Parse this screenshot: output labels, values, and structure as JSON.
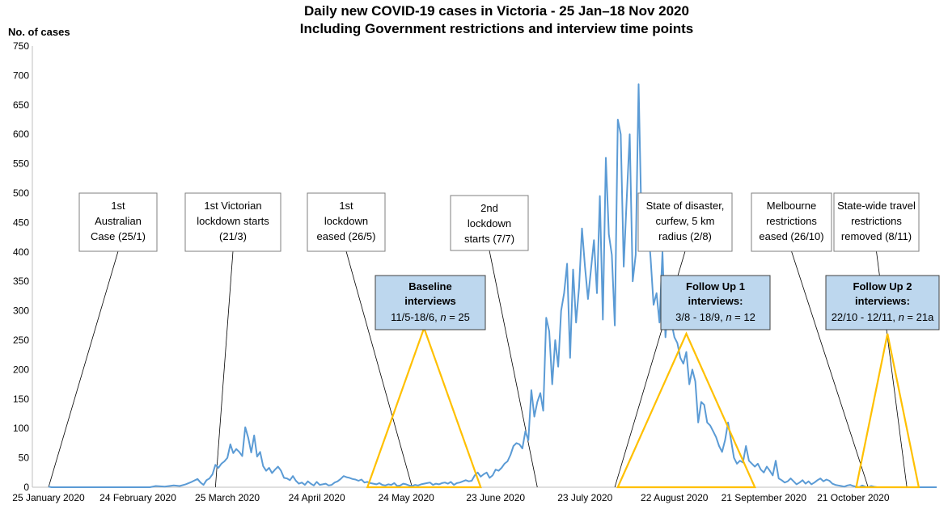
{
  "chart_data": {
    "type": "line",
    "title": "Daily new COVID-19 cases in Victoria - 25 Jan–18 Nov 2020",
    "subtitle": "Including Government restrictions and interview time points",
    "ylabel": "No. of cases",
    "xlabel": "",
    "xlim": [
      "2020-01-25",
      "2020-11-18"
    ],
    "ylim": [
      0,
      750
    ],
    "yticks": [
      0,
      50,
      100,
      150,
      200,
      250,
      300,
      350,
      400,
      450,
      500,
      550,
      600,
      650,
      700,
      750
    ],
    "xticks": [
      {
        "date": "2020-01-25",
        "label": "25 January 2020"
      },
      {
        "date": "2020-02-24",
        "label": "24 February 2020"
      },
      {
        "date": "2020-03-25",
        "label": "25 March 2020"
      },
      {
        "date": "2020-04-24",
        "label": "24 April 2020"
      },
      {
        "date": "2020-05-24",
        "label": "24 May 2020"
      },
      {
        "date": "2020-06-23",
        "label": "23 June 2020"
      },
      {
        "date": "2020-07-23",
        "label": "23 July 2020"
      },
      {
        "date": "2020-08-22",
        "label": "22 August 2020"
      },
      {
        "date": "2020-09-21",
        "label": "21 September 2020"
      },
      {
        "date": "2020-10-21",
        "label": "21 October 2020"
      }
    ],
    "grid": false,
    "line_color": "#5b9bd5",
    "series": [
      {
        "name": "",
        "points": [
          [
            "2020-01-25",
            1
          ],
          [
            "2020-01-26",
            0
          ],
          [
            "2020-01-27",
            0
          ],
          [
            "2020-02-01",
            0
          ],
          [
            "2020-02-15",
            0
          ],
          [
            "2020-02-25",
            0
          ],
          [
            "2020-02-28",
            0
          ],
          [
            "2020-03-01",
            2
          ],
          [
            "2020-03-04",
            1
          ],
          [
            "2020-03-07",
            3
          ],
          [
            "2020-03-09",
            2
          ],
          [
            "2020-03-11",
            5
          ],
          [
            "2020-03-13",
            9
          ],
          [
            "2020-03-15",
            14
          ],
          [
            "2020-03-16",
            8
          ],
          [
            "2020-03-17",
            4
          ],
          [
            "2020-03-18",
            12
          ],
          [
            "2020-03-19",
            15
          ],
          [
            "2020-03-20",
            22
          ],
          [
            "2020-03-21",
            38
          ],
          [
            "2020-03-22",
            33
          ],
          [
            "2020-03-23",
            40
          ],
          [
            "2020-03-24",
            44
          ],
          [
            "2020-03-25",
            50
          ],
          [
            "2020-03-26",
            73
          ],
          [
            "2020-03-27",
            58
          ],
          [
            "2020-03-28",
            65
          ],
          [
            "2020-03-29",
            60
          ],
          [
            "2020-03-30",
            53
          ],
          [
            "2020-03-31",
            102
          ],
          [
            "2020-04-01",
            84
          ],
          [
            "2020-04-02",
            59
          ],
          [
            "2020-04-03",
            88
          ],
          [
            "2020-04-04",
            52
          ],
          [
            "2020-04-05",
            60
          ],
          [
            "2020-04-06",
            36
          ],
          [
            "2020-04-07",
            28
          ],
          [
            "2020-04-08",
            33
          ],
          [
            "2020-04-09",
            24
          ],
          [
            "2020-04-10",
            30
          ],
          [
            "2020-04-11",
            35
          ],
          [
            "2020-04-12",
            28
          ],
          [
            "2020-04-13",
            16
          ],
          [
            "2020-04-14",
            15
          ],
          [
            "2020-04-15",
            12
          ],
          [
            "2020-04-16",
            19
          ],
          [
            "2020-04-17",
            11
          ],
          [
            "2020-04-18",
            6
          ],
          [
            "2020-04-19",
            8
          ],
          [
            "2020-04-20",
            4
          ],
          [
            "2020-04-21",
            10
          ],
          [
            "2020-04-22",
            6
          ],
          [
            "2020-04-23",
            3
          ],
          [
            "2020-04-24",
            9
          ],
          [
            "2020-04-25",
            4
          ],
          [
            "2020-04-26",
            5
          ],
          [
            "2020-04-27",
            6
          ],
          [
            "2020-04-28",
            3
          ],
          [
            "2020-04-29",
            4
          ],
          [
            "2020-04-30",
            8
          ],
          [
            "2020-05-01",
            10
          ],
          [
            "2020-05-02",
            14
          ],
          [
            "2020-05-03",
            19
          ],
          [
            "2020-05-04",
            17
          ],
          [
            "2020-05-05",
            16
          ],
          [
            "2020-05-06",
            14
          ],
          [
            "2020-05-07",
            13
          ],
          [
            "2020-05-08",
            11
          ],
          [
            "2020-05-09",
            13
          ],
          [
            "2020-05-10",
            8
          ],
          [
            "2020-05-11",
            9
          ],
          [
            "2020-05-12",
            7
          ],
          [
            "2020-05-13",
            6
          ],
          [
            "2020-05-14",
            5
          ],
          [
            "2020-05-15",
            7
          ],
          [
            "2020-05-16",
            4
          ],
          [
            "2020-05-17",
            3
          ],
          [
            "2020-05-18",
            5
          ],
          [
            "2020-05-19",
            4
          ],
          [
            "2020-05-20",
            7
          ],
          [
            "2020-05-21",
            2
          ],
          [
            "2020-05-22",
            3
          ],
          [
            "2020-05-23",
            6
          ],
          [
            "2020-05-24",
            5
          ],
          [
            "2020-05-25",
            3
          ],
          [
            "2020-05-26",
            2
          ],
          [
            "2020-05-27",
            4
          ],
          [
            "2020-05-28",
            3
          ],
          [
            "2020-05-29",
            5
          ],
          [
            "2020-05-30",
            6
          ],
          [
            "2020-05-31",
            7
          ],
          [
            "2020-06-01",
            8
          ],
          [
            "2020-06-02",
            4
          ],
          [
            "2020-06-03",
            6
          ],
          [
            "2020-06-04",
            5
          ],
          [
            "2020-06-05",
            7
          ],
          [
            "2020-06-06",
            8
          ],
          [
            "2020-06-07",
            6
          ],
          [
            "2020-06-08",
            9
          ],
          [
            "2020-06-09",
            4
          ],
          [
            "2020-06-10",
            7
          ],
          [
            "2020-06-11",
            8
          ],
          [
            "2020-06-12",
            10
          ],
          [
            "2020-06-13",
            12
          ],
          [
            "2020-06-14",
            10
          ],
          [
            "2020-06-15",
            11
          ],
          [
            "2020-06-16",
            20
          ],
          [
            "2020-06-17",
            25
          ],
          [
            "2020-06-18",
            18
          ],
          [
            "2020-06-19",
            22
          ],
          [
            "2020-06-20",
            25
          ],
          [
            "2020-06-21",
            16
          ],
          [
            "2020-06-22",
            20
          ],
          [
            "2020-06-23",
            30
          ],
          [
            "2020-06-24",
            28
          ],
          [
            "2020-06-25",
            33
          ],
          [
            "2020-06-26",
            40
          ],
          [
            "2020-06-27",
            44
          ],
          [
            "2020-06-28",
            55
          ],
          [
            "2020-06-29",
            70
          ],
          [
            "2020-06-30",
            75
          ],
          [
            "2020-07-01",
            73
          ],
          [
            "2020-07-02",
            66
          ],
          [
            "2020-07-03",
            95
          ],
          [
            "2020-07-04",
            80
          ],
          [
            "2020-07-05",
            165
          ],
          [
            "2020-07-06",
            120
          ],
          [
            "2020-07-07",
            145
          ],
          [
            "2020-07-08",
            160
          ],
          [
            "2020-07-09",
            130
          ],
          [
            "2020-07-10",
            288
          ],
          [
            "2020-07-11",
            265
          ],
          [
            "2020-07-12",
            175
          ],
          [
            "2020-07-13",
            250
          ],
          [
            "2020-07-14",
            205
          ],
          [
            "2020-07-15",
            300
          ],
          [
            "2020-07-16",
            330
          ],
          [
            "2020-07-17",
            380
          ],
          [
            "2020-07-18",
            220
          ],
          [
            "2020-07-19",
            370
          ],
          [
            "2020-07-20",
            280
          ],
          [
            "2020-07-21",
            340
          ],
          [
            "2020-07-22",
            440
          ],
          [
            "2020-07-23",
            375
          ],
          [
            "2020-07-24",
            320
          ],
          [
            "2020-07-25",
            370
          ],
          [
            "2020-07-26",
            420
          ],
          [
            "2020-07-27",
            330
          ],
          [
            "2020-07-28",
            495
          ],
          [
            "2020-07-29",
            285
          ],
          [
            "2020-07-30",
            560
          ],
          [
            "2020-07-31",
            430
          ],
          [
            "2020-08-01",
            395
          ],
          [
            "2020-08-02",
            275
          ],
          [
            "2020-08-03",
            625
          ],
          [
            "2020-08-04",
            600
          ],
          [
            "2020-08-05",
            375
          ],
          [
            "2020-08-06",
            490
          ],
          [
            "2020-08-07",
            600
          ],
          [
            "2020-08-08",
            350
          ],
          [
            "2020-08-09",
            395
          ],
          [
            "2020-08-10",
            685
          ],
          [
            "2020-08-11",
            440
          ],
          [
            "2020-08-12",
            425
          ],
          [
            "2020-08-13",
            455
          ],
          [
            "2020-08-14",
            390
          ],
          [
            "2020-08-15",
            310
          ],
          [
            "2020-08-16",
            330
          ],
          [
            "2020-08-17",
            280
          ],
          [
            "2020-08-18",
            400
          ],
          [
            "2020-08-19",
            255
          ],
          [
            "2020-08-20",
            320
          ],
          [
            "2020-08-21",
            280
          ],
          [
            "2020-08-22",
            255
          ],
          [
            "2020-08-23",
            245
          ],
          [
            "2020-08-24",
            220
          ],
          [
            "2020-08-25",
            210
          ],
          [
            "2020-08-26",
            230
          ],
          [
            "2020-08-27",
            175
          ],
          [
            "2020-08-28",
            200
          ],
          [
            "2020-08-29",
            180
          ],
          [
            "2020-08-30",
            110
          ],
          [
            "2020-08-31",
            145
          ],
          [
            "2020-09-01",
            140
          ],
          [
            "2020-09-02",
            110
          ],
          [
            "2020-09-03",
            105
          ],
          [
            "2020-09-04",
            95
          ],
          [
            "2020-09-05",
            85
          ],
          [
            "2020-09-06",
            70
          ],
          [
            "2020-09-07",
            60
          ],
          [
            "2020-09-08",
            80
          ],
          [
            "2020-09-09",
            110
          ],
          [
            "2020-09-10",
            80
          ],
          [
            "2020-09-11",
            50
          ],
          [
            "2020-09-12",
            40
          ],
          [
            "2020-09-13",
            45
          ],
          [
            "2020-09-14",
            42
          ],
          [
            "2020-09-15",
            70
          ],
          [
            "2020-09-16",
            45
          ],
          [
            "2020-09-17",
            40
          ],
          [
            "2020-09-18",
            35
          ],
          [
            "2020-09-19",
            40
          ],
          [
            "2020-09-20",
            30
          ],
          [
            "2020-09-21",
            25
          ],
          [
            "2020-09-22",
            35
          ],
          [
            "2020-09-23",
            28
          ],
          [
            "2020-09-24",
            20
          ],
          [
            "2020-09-25",
            45
          ],
          [
            "2020-09-26",
            15
          ],
          [
            "2020-09-27",
            12
          ],
          [
            "2020-09-28",
            8
          ],
          [
            "2020-09-29",
            10
          ],
          [
            "2020-09-30",
            15
          ],
          [
            "2020-10-01",
            10
          ],
          [
            "2020-10-02",
            5
          ],
          [
            "2020-10-03",
            8
          ],
          [
            "2020-10-04",
            12
          ],
          [
            "2020-10-05",
            6
          ],
          [
            "2020-10-06",
            10
          ],
          [
            "2020-10-07",
            5
          ],
          [
            "2020-10-08",
            8
          ],
          [
            "2020-10-09",
            12
          ],
          [
            "2020-10-10",
            15
          ],
          [
            "2020-10-11",
            10
          ],
          [
            "2020-10-12",
            13
          ],
          [
            "2020-10-13",
            11
          ],
          [
            "2020-10-14",
            6
          ],
          [
            "2020-10-15",
            4
          ],
          [
            "2020-10-16",
            3
          ],
          [
            "2020-10-17",
            2
          ],
          [
            "2020-10-18",
            1
          ],
          [
            "2020-10-19",
            3
          ],
          [
            "2020-10-20",
            4
          ],
          [
            "2020-10-21",
            2
          ],
          [
            "2020-10-22",
            1
          ],
          [
            "2020-10-23",
            0
          ],
          [
            "2020-10-24",
            3
          ],
          [
            "2020-10-25",
            1
          ],
          [
            "2020-10-26",
            0
          ],
          [
            "2020-10-27",
            2
          ],
          [
            "2020-10-28",
            1
          ],
          [
            "2020-10-29",
            0
          ],
          [
            "2020-10-30",
            0
          ],
          [
            "2020-11-01",
            0
          ],
          [
            "2020-11-05",
            0
          ],
          [
            "2020-11-10",
            0
          ],
          [
            "2020-11-18",
            0
          ]
        ]
      }
    ],
    "annotations": [
      {
        "lines": [
          "1st",
          "Australian",
          "Case (25/1)"
        ],
        "date": "2020-01-25"
      },
      {
        "lines": [
          "1st Victorian",
          "lockdown starts",
          "(21/3)"
        ],
        "date": "2020-03-21"
      },
      {
        "lines": [
          "1st",
          "lockdown",
          "eased (26/5)"
        ],
        "date": "2020-05-26"
      },
      {
        "lines": [
          "2nd",
          "lockdown",
          "starts (7/7)"
        ],
        "date": "2020-07-07"
      },
      {
        "lines": [
          "State of disaster,",
          "curfew, 5 km",
          "radius (2/8)"
        ],
        "date": "2020-08-02"
      },
      {
        "lines": [
          "Melbourne",
          "restrictions",
          "eased (26/10)"
        ],
        "date": "2020-10-26"
      },
      {
        "lines": [
          "State-wide travel",
          "restrictions",
          "removed (8/11)"
        ],
        "date": "2020-11-08"
      }
    ],
    "interviews": [
      {
        "title_lines": [
          "Baseline",
          "interviews"
        ],
        "detail_prefix": "11/5-18/6, ",
        "n_label": "n",
        "detail_suffix": " = 25",
        "start": "2020-05-11",
        "end": "2020-06-18",
        "outline_color": "#ffc000"
      },
      {
        "title_lines": [
          "Follow Up 1",
          "interviews:"
        ],
        "detail_prefix": "3/8 - 18/9, ",
        "n_label": "n",
        "detail_suffix": " = 12",
        "start": "2020-08-03",
        "end": "2020-09-18",
        "outline_color": "#ffc000"
      },
      {
        "title_lines": [
          "Follow Up 2",
          "interviews:"
        ],
        "detail_prefix": "22/10 - 12/11, ",
        "n_label": "n",
        "detail_suffix": " = 21a",
        "start": "2020-10-22",
        "end": "2020-11-12",
        "outline_color": "#ffc000"
      }
    ]
  }
}
